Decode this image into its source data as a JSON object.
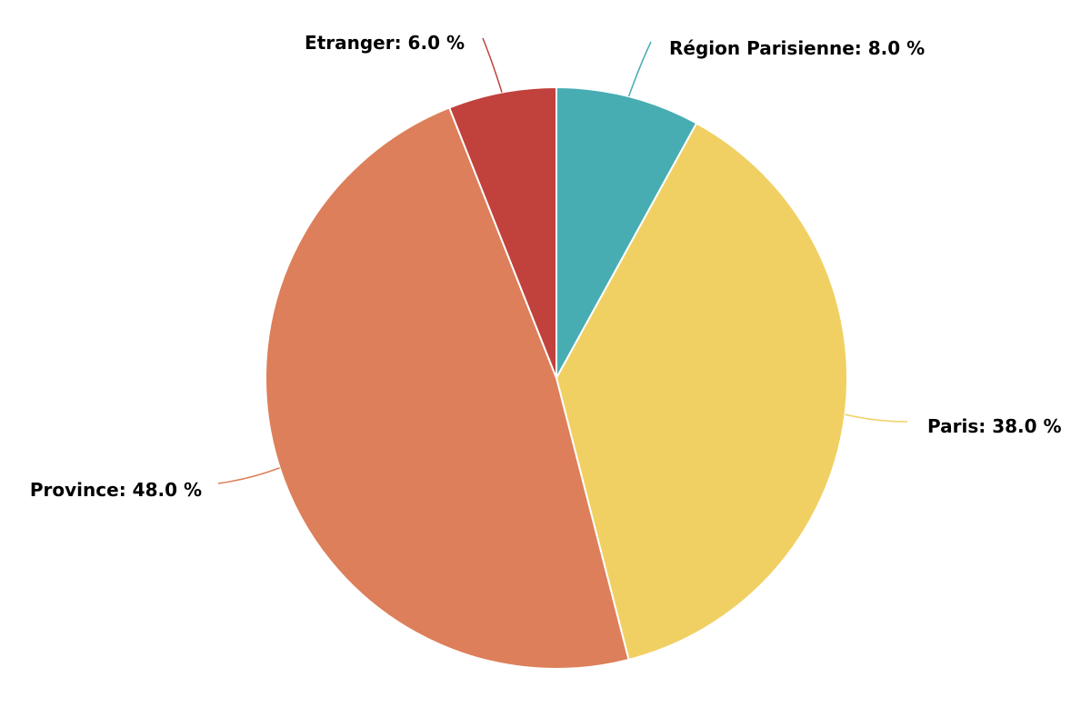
{
  "chart_data": {
    "type": "pie",
    "title": "",
    "start_angle_deg": 0,
    "direction": "clockwise",
    "slices": [
      {
        "label": "Région Parisienne",
        "value": 8.0,
        "display": "Région Parisienne: 8.0 %",
        "color": "#47adb2"
      },
      {
        "label": "Paris",
        "value": 38.0,
        "display": "Paris: 38.0 %",
        "color": "#f1d063"
      },
      {
        "label": "Province",
        "value": 48.0,
        "display": "Province: 48.0 %",
        "color": "#dd7f5a"
      },
      {
        "label": "Etranger",
        "value": 6.0,
        "display": "Etranger: 6.0 %",
        "color": "#c1413c"
      }
    ]
  }
}
